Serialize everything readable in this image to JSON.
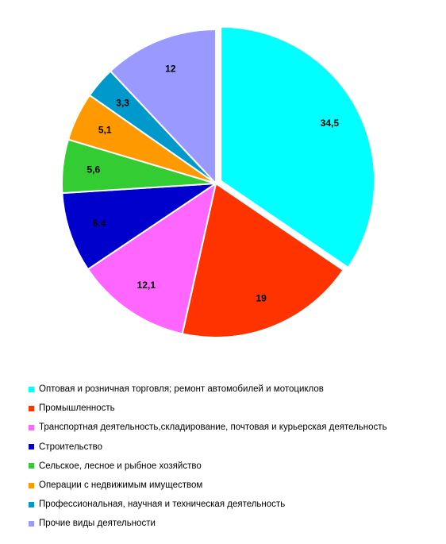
{
  "chart_data": {
    "type": "pie",
    "title": "",
    "categories": [
      "Оптовая и розничная торговля; ремонт автомобилей и мотоциклов",
      "Промышленность",
      "Транспортная деятельность,складирование,  почтовая и курьерская деятельность",
      "Строительство",
      "Сельское,  лесное  и рыбное хозяйство",
      "Операции с недвижимым  имуществом",
      "Профессиональная, научная и техническая  деятельность",
      "Прочие виды деятельности"
    ],
    "values": [
      34.5,
      19,
      12.1,
      8.4,
      5.6,
      5.1,
      3.3,
      12
    ],
    "data_labels": [
      "34,5",
      "19",
      "12,1",
      "8,4",
      "5,6",
      "5,1",
      "3,3",
      "12"
    ],
    "colors": [
      "#00FFFF",
      "#FF3300",
      "#FF66FF",
      "#0000CC",
      "#33CC33",
      "#FF9900",
      "#0099CC",
      "#9999FF"
    ],
    "exploded_slice": 0,
    "legend_position": "bottom"
  }
}
